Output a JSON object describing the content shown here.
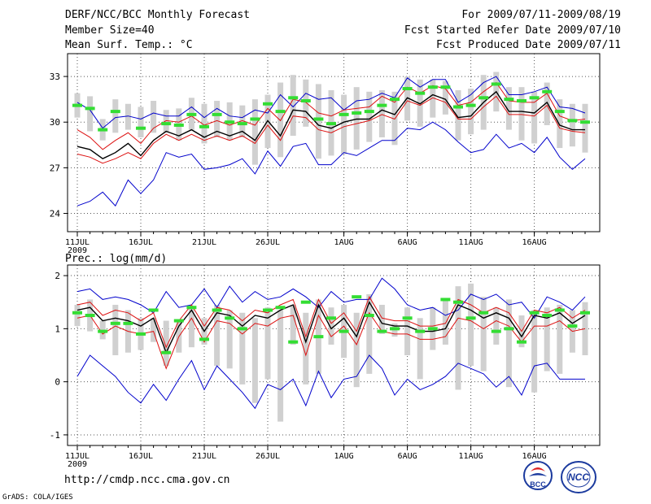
{
  "header": {
    "title": "DERF/NCC/BCC Monthly Forecast",
    "member": "Member Size=40",
    "variable": "Mean Surf. Temp.: °C",
    "period": "For 2009/07/11-2009/08/19",
    "refer": "Fcst Started Refer Date 2009/07/10",
    "produced": "Fcst Produced Date 2009/07/11"
  },
  "footer": {
    "url": "http://cmdp.ncc.cma.gov.cn",
    "credit": "GrADS: COLA/IGES",
    "logo_left": "BCC",
    "logo_right": "NCC"
  },
  "colors": {
    "ens_bar": "#d0d0d0",
    "obs": "#33dd33",
    "mean": "#000000",
    "spread": "#dd1111",
    "extreme": "#0000cc"
  },
  "chart_data": [
    {
      "type": "line",
      "title": "Mean Surf. Temp.: °C",
      "ylabel": "°C",
      "ylim": [
        22.8,
        34.5
      ],
      "yticks": [
        24,
        27,
        30,
        33
      ],
      "xticks": [
        {
          "day": 0,
          "label": "11JUL"
        },
        {
          "day": 5,
          "label": "16JUL"
        },
        {
          "day": 10,
          "label": "21JUL"
        },
        {
          "day": 15,
          "label": "26JUL"
        },
        {
          "day": 21,
          "label": "1AUG"
        },
        {
          "day": 26,
          "label": "6AUG"
        },
        {
          "day": 31,
          "label": "11AUG"
        },
        {
          "day": 36,
          "label": "16AUG"
        }
      ],
      "year_label": "2009",
      "series": [
        {
          "name": "ensemble max",
          "values": [
            31.3,
            30.8,
            29.6,
            30.3,
            30.4,
            30.2,
            30.6,
            30.4,
            30.4,
            31.0,
            30.3,
            30.9,
            30.4,
            30.3,
            30.8,
            30.6,
            31.8,
            31.0,
            31.9,
            31.5,
            31.6,
            30.8,
            31.4,
            31.5,
            31.9,
            31.6,
            32.9,
            32.3,
            32.8,
            32.8,
            31.3,
            31.8,
            32.6,
            33.0,
            31.8,
            31.8,
            32.0,
            32.3,
            31.0,
            30.9,
            30.6
          ]
        },
        {
          "name": "ensemble mean",
          "values": [
            28.4,
            28.2,
            27.6,
            28.0,
            28.6,
            27.8,
            28.8,
            29.4,
            29.1,
            29.5,
            29.0,
            29.4,
            29.1,
            29.4,
            28.8,
            30.1,
            29.1,
            30.8,
            30.7,
            29.8,
            29.6,
            30.0,
            30.2,
            30.2,
            30.8,
            30.5,
            31.6,
            31.2,
            31.8,
            31.5,
            30.3,
            30.4,
            31.3,
            32.0,
            30.7,
            30.7,
            30.6,
            31.3,
            29.8,
            29.5,
            29.5
          ]
        },
        {
          "name": "ensemble mean +1 std",
          "values": [
            29.5,
            29.0,
            28.2,
            28.8,
            29.3,
            28.6,
            29.6,
            30.1,
            30.0,
            30.4,
            29.8,
            30.1,
            29.8,
            30.1,
            29.8,
            30.9,
            30.1,
            31.5,
            31.3,
            30.6,
            30.4,
            30.8,
            30.9,
            31.0,
            31.7,
            31.3,
            32.3,
            31.9,
            32.4,
            32.2,
            31.1,
            31.3,
            32.0,
            32.6,
            31.4,
            31.3,
            31.3,
            31.9,
            30.4,
            30.1,
            30.2
          ]
        },
        {
          "name": "ensemble mean -1 std",
          "values": [
            27.9,
            27.7,
            27.3,
            27.6,
            28.0,
            27.6,
            28.6,
            29.2,
            28.8,
            29.2,
            28.8,
            29.1,
            28.8,
            29.1,
            28.6,
            29.8,
            28.8,
            30.4,
            30.3,
            29.5,
            29.3,
            29.7,
            29.9,
            30.1,
            30.5,
            30.2,
            31.4,
            31.1,
            31.6,
            31.3,
            30.2,
            30.2,
            31.0,
            31.7,
            30.5,
            30.5,
            30.4,
            31.1,
            29.6,
            29.4,
            29.3
          ]
        },
        {
          "name": "ensemble min",
          "values": [
            24.5,
            24.8,
            25.4,
            24.5,
            26.2,
            25.3,
            26.2,
            28.0,
            27.7,
            27.9,
            26.9,
            27.0,
            27.2,
            27.6,
            26.6,
            28.1,
            27.1,
            28.4,
            28.6,
            27.2,
            27.2,
            28.0,
            27.8,
            28.3,
            28.8,
            28.8,
            29.6,
            29.5,
            30.0,
            29.5,
            28.7,
            28.0,
            28.2,
            29.2,
            28.3,
            28.6,
            28.0,
            29.0,
            27.7,
            26.9,
            27.6
          ]
        },
        {
          "name": "observation",
          "values": [
            31.1,
            30.9,
            29.5,
            30.7,
            null,
            29.6,
            null,
            29.9,
            29.8,
            30.5,
            29.7,
            30.5,
            30.0,
            29.9,
            30.2,
            31.2,
            30.7,
            31.6,
            31.4,
            30.2,
            29.9,
            30.5,
            30.6,
            30.7,
            31.1,
            31.5,
            32.2,
            31.9,
            32.3,
            32.3,
            31.0,
            31.1,
            31.6,
            32.5,
            31.5,
            31.4,
            31.6,
            32.0,
            30.7,
            30.1,
            30.0
          ]
        }
      ],
      "ens_range": {
        "low": [
          30.3,
          29.4,
          28.8,
          29.3,
          29.5,
          29.0,
          29.3,
          29.3,
          28.8,
          29.5,
          28.6,
          29.0,
          28.8,
          29.0,
          27.2,
          28.3,
          27.7,
          29.1,
          29.7,
          27.6,
          27.8,
          27.9,
          28.2,
          28.7,
          29.0,
          28.5,
          30.1,
          29.7,
          30.3,
          30.5,
          28.8,
          29.2,
          29.5,
          30.7,
          29.5,
          28.8,
          28.6,
          29.8,
          28.3,
          28.4,
          28.0
        ],
        "high": [
          31.9,
          31.7,
          30.2,
          31.5,
          31.2,
          31.0,
          31.4,
          30.8,
          30.9,
          31.6,
          31.2,
          31.4,
          31.3,
          31.1,
          31.5,
          31.8,
          32.6,
          33.1,
          32.8,
          32.5,
          32.1,
          31.8,
          32.3,
          32.0,
          32.1,
          32.0,
          33.0,
          32.8,
          32.8,
          32.7,
          32.1,
          32.2,
          33.1,
          33.3,
          32.3,
          32.3,
          32.0,
          32.6,
          31.5,
          31.2,
          31.2
        ]
      }
    },
    {
      "type": "line",
      "title": "Prec.: log(mm/d)",
      "ylabel": "log(mm/d)",
      "ylim": [
        -1.2,
        2.2
      ],
      "yticks": [
        -1,
        0,
        1,
        2
      ],
      "xticks": [
        {
          "day": 0,
          "label": "11JUL"
        },
        {
          "day": 5,
          "label": "16JUL"
        },
        {
          "day": 10,
          "label": "21JUL"
        },
        {
          "day": 15,
          "label": "26JUL"
        },
        {
          "day": 21,
          "label": "1AUG"
        },
        {
          "day": 26,
          "label": "6AUG"
        },
        {
          "day": 31,
          "label": "11AUG"
        },
        {
          "day": 36,
          "label": "16AUG"
        }
      ],
      "year_label": "2009",
      "series": [
        {
          "name": "ensemble max",
          "values": [
            1.7,
            1.75,
            1.55,
            1.6,
            1.55,
            1.45,
            1.3,
            1.7,
            1.4,
            1.45,
            1.75,
            1.4,
            1.8,
            1.5,
            1.7,
            1.55,
            1.6,
            1.75,
            1.6,
            1.4,
            1.7,
            1.5,
            1.55,
            1.55,
            1.95,
            1.75,
            1.45,
            1.35,
            1.4,
            1.25,
            1.35,
            1.65,
            1.55,
            1.65,
            1.45,
            1.5,
            1.2,
            1.6,
            1.5,
            1.35,
            1.6
          ]
        },
        {
          "name": "ensemble mean",
          "values": [
            1.35,
            1.4,
            1.15,
            1.2,
            1.15,
            1.05,
            1.2,
            0.55,
            1.05,
            1.35,
            0.95,
            1.3,
            1.25,
            1.05,
            1.25,
            1.2,
            1.35,
            1.45,
            0.75,
            1.45,
            1.0,
            1.2,
            0.85,
            1.5,
            1.1,
            1.05,
            1.05,
            0.95,
            0.95,
            1.0,
            1.45,
            1.35,
            1.2,
            1.3,
            1.2,
            0.85,
            1.25,
            1.2,
            1.3,
            1.1,
            1.25
          ]
        },
        {
          "name": "ensemble mean +1 std",
          "values": [
            1.45,
            1.5,
            1.25,
            1.35,
            1.3,
            1.15,
            1.3,
            0.65,
            1.15,
            1.45,
            1.05,
            1.4,
            1.35,
            1.15,
            1.35,
            1.3,
            1.45,
            1.55,
            0.85,
            1.55,
            1.1,
            1.3,
            0.95,
            1.6,
            1.2,
            1.15,
            1.15,
            1.05,
            1.05,
            1.1,
            1.55,
            1.45,
            1.3,
            1.4,
            1.3,
            0.95,
            1.35,
            1.3,
            1.4,
            1.2,
            1.35
          ]
        },
        {
          "name": "ensemble mean -1 std",
          "values": [
            1.2,
            1.25,
            0.9,
            1.05,
            0.95,
            0.9,
            0.95,
            0.25,
            0.85,
            1.2,
            0.75,
            1.15,
            1.1,
            0.9,
            1.1,
            1.05,
            1.2,
            1.25,
            0.5,
            1.25,
            0.85,
            1.05,
            0.7,
            1.3,
            0.95,
            0.9,
            0.9,
            0.8,
            0.8,
            0.85,
            1.2,
            1.15,
            1.0,
            1.15,
            1.05,
            0.75,
            1.05,
            1.05,
            1.15,
            0.95,
            1.0
          ]
        },
        {
          "name": "ensemble min",
          "values": [
            0.1,
            0.5,
            0.3,
            0.1,
            -0.2,
            -0.4,
            -0.05,
            -0.35,
            0.05,
            0.4,
            -0.15,
            0.3,
            0.05,
            -0.2,
            -0.5,
            -0.05,
            -0.15,
            0.05,
            -0.45,
            0.2,
            -0.3,
            0.05,
            0.1,
            0.5,
            0.25,
            -0.25,
            0.05,
            -0.15,
            -0.05,
            0.1,
            0.35,
            0.25,
            0.15,
            -0.1,
            0.1,
            -0.25,
            0.3,
            0.35,
            0.05,
            0.05,
            0.05
          ]
        },
        {
          "name": "observation",
          "values": [
            1.3,
            1.25,
            0.95,
            1.1,
            1.1,
            0.9,
            1.35,
            0.55,
            1.15,
            1.4,
            0.8,
            1.35,
            1.2,
            1.0,
            null,
            1.35,
            1.4,
            0.75,
            1.5,
            0.85,
            1.2,
            0.95,
            1.6,
            1.25,
            0.95,
            1.0,
            1.2,
            0.95,
            1.0,
            1.55,
            1.5,
            1.2,
            1.3,
            0.95,
            1.0,
            0.75,
            1.3,
            1.25,
            1.35,
            1.05,
            1.3
          ]
        }
      ],
      "ens_range": {
        "low": [
          1.05,
          0.95,
          0.8,
          0.5,
          0.55,
          0.6,
          0.75,
          0.3,
          0.55,
          0.65,
          0.7,
          0.3,
          0.25,
          -0.05,
          -0.4,
          0.05,
          -0.75,
          0.7,
          -0.05,
          0.15,
          0.7,
          0.45,
          -0.1,
          0.15,
          0.9,
          0.85,
          0.5,
          0.05,
          0.6,
          0.7,
          -0.15,
          0.3,
          0.2,
          0.7,
          -0.1,
          0.65,
          -0.2,
          0.2,
          0.15,
          0.55,
          0.5
        ],
        "high": [
          1.45,
          1.55,
          1.15,
          1.45,
          1.35,
          1.2,
          1.2,
          1.15,
          1.15,
          1.4,
          1.2,
          1.45,
          1.35,
          1.3,
          1.2,
          1.4,
          1.35,
          1.45,
          1.3,
          1.55,
          1.4,
          1.45,
          1.3,
          1.65,
          1.45,
          1.1,
          1.4,
          1.2,
          1.4,
          1.55,
          1.8,
          1.85,
          1.6,
          1.4,
          1.55,
          1.25,
          1.35,
          1.4,
          1.45,
          1.35,
          1.5
        ]
      }
    }
  ]
}
